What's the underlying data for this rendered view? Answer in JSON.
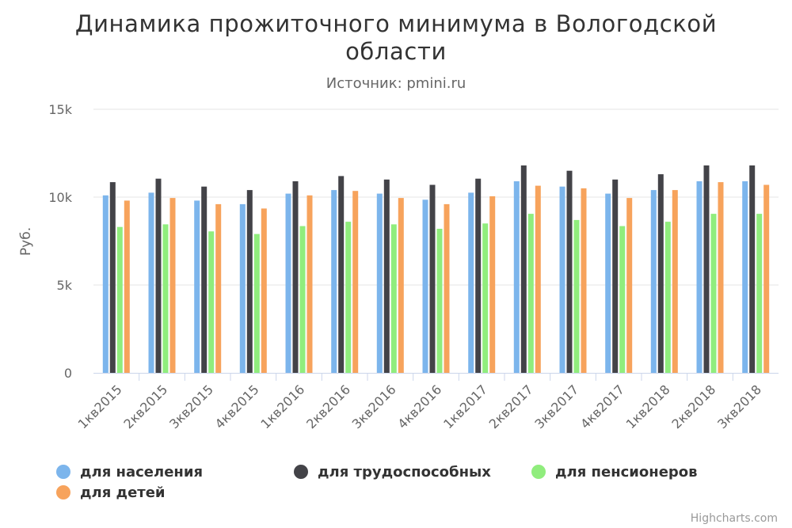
{
  "title_line1": "Динамика прожиточного минимума в Вологодской",
  "title_line2": "области",
  "subtitle": "Источник: pmini.ru",
  "credits": "Highcharts.com",
  "chart_data": {
    "type": "bar",
    "title": "Динамика прожиточного минимума в Вологодской области",
    "subtitle": "Источник: pmini.ru",
    "ylabel": "Руб.",
    "xlabel": "",
    "ylim": [
      0,
      15000
    ],
    "yticks": [
      0,
      5000,
      10000,
      15000
    ],
    "ytick_labels": [
      "0",
      "5k",
      "10k",
      "15k"
    ],
    "grid": true,
    "legend_position": "bottom",
    "categories": [
      "1кв2015",
      "2кв2015",
      "3кв2015",
      "4кв2015",
      "1кв2016",
      "2кв2016",
      "3кв2016",
      "4кв2016",
      "1кв2017",
      "2кв2017",
      "3кв2017",
      "4кв2017",
      "1кв2018",
      "2кв2018",
      "3кв2018"
    ],
    "series": [
      {
        "name": "для населения",
        "color": "#7cb5ec",
        "values": [
          10100,
          10250,
          9800,
          9600,
          10200,
          10400,
          10200,
          9850,
          10250,
          10900,
          10600,
          10200,
          10400,
          10900,
          10900
        ]
      },
      {
        "name": "для трудоспособных",
        "color": "#434348",
        "values": [
          10850,
          11050,
          10600,
          10400,
          10900,
          11200,
          11000,
          10700,
          11050,
          11800,
          11500,
          11000,
          11300,
          11800,
          11800
        ]
      },
      {
        "name": "для пенсионеров",
        "color": "#90ed7d",
        "values": [
          8300,
          8450,
          8050,
          7900,
          8350,
          8600,
          8450,
          8200,
          8500,
          9050,
          8700,
          8350,
          8600,
          9050,
          9050
        ]
      },
      {
        "name": "для детей",
        "color": "#f7a35c",
        "values": [
          9800,
          9950,
          9600,
          9350,
          10100,
          10350,
          9950,
          9600,
          10050,
          10650,
          10500,
          9950,
          10400,
          10850,
          10700
        ]
      }
    ]
  }
}
